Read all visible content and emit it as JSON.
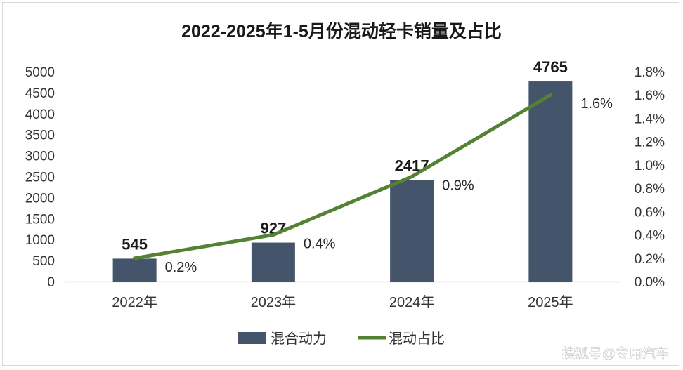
{
  "watermark": "搜狐号@专用汽车",
  "colors": {
    "bar": "#44546a",
    "line": "#548235",
    "axis": "#d9d9d9"
  },
  "chart_data": {
    "type": "bar",
    "title": "2022-2025年1-5月份混动轻卡销量及占比",
    "categories": [
      "2022年",
      "2023年",
      "2024年",
      "2025年"
    ],
    "series": [
      {
        "name": "混合动力",
        "type": "bar",
        "axis": "left",
        "values": [
          545,
          927,
          2417,
          4765
        ],
        "labels": [
          "545",
          "927",
          "2417",
          "4765"
        ]
      },
      {
        "name": "混动占比",
        "type": "line",
        "axis": "right",
        "values": [
          0.2,
          0.4,
          0.9,
          1.6
        ],
        "labels": [
          "0.2%",
          "0.4%",
          "0.9%",
          "1.6%"
        ]
      }
    ],
    "y_left": {
      "min": 0,
      "max": 5000,
      "ticks": [
        "0",
        "500",
        "1000",
        "1500",
        "2000",
        "2500",
        "3000",
        "3500",
        "4000",
        "4500",
        "5000"
      ]
    },
    "y_right": {
      "min": 0,
      "max": 1.8,
      "ticks": [
        "0.0%",
        "0.2%",
        "0.4%",
        "0.6%",
        "0.8%",
        "1.0%",
        "1.2%",
        "1.4%",
        "1.6%",
        "1.8%"
      ]
    },
    "grid": false,
    "legend": "bottom"
  }
}
